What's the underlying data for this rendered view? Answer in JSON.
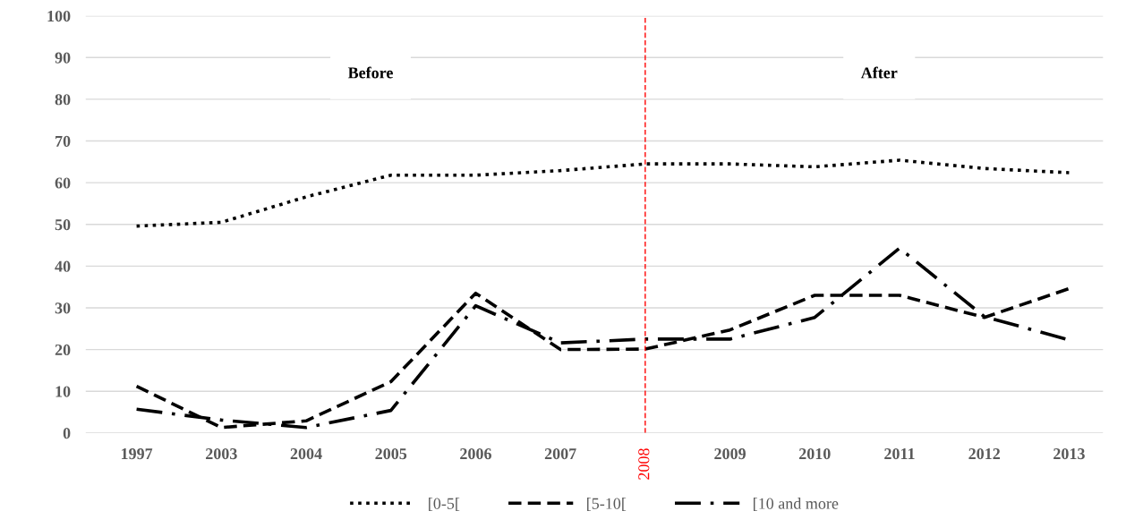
{
  "chart_data": {
    "type": "line",
    "categories": [
      "1997",
      "2003",
      "2004",
      "2005",
      "2006",
      "2007",
      "2008",
      "2009",
      "2010",
      "2011",
      "2012",
      "2013"
    ],
    "series": [
      {
        "name": "[0-5[",
        "color": "#000000",
        "line_style": "dotted",
        "values": [
          49.6,
          50.5,
          56.6,
          61.8,
          61.8,
          62.9,
          64.5,
          64.5,
          63.8,
          65.4,
          63.4,
          62.4
        ]
      },
      {
        "name": "[5-10[",
        "color": "#000000",
        "line_style": "dashed",
        "values": [
          11.2,
          1.3,
          2.9,
          12.3,
          33.5,
          20,
          20.1,
          24.7,
          33,
          33,
          27.7,
          34.6
        ]
      },
      {
        "name": "[10 and more",
        "color": "#000000",
        "line_style": "dashdot",
        "values": [
          5.7,
          3.1,
          1.3,
          5.4,
          30.5,
          21.6,
          22.5,
          22.5,
          27.7,
          44.3,
          27.9,
          22.3
        ]
      }
    ],
    "ylim": [
      0,
      100
    ],
    "yticks": [
      0,
      10,
      20,
      30,
      40,
      50,
      60,
      70,
      80,
      90,
      100
    ],
    "grid": "y",
    "legend": "bottom",
    "marker": "none",
    "ref_lines": [
      {
        "axis": "x",
        "value": "2008",
        "color": "#ff0000",
        "line_style": "dashed"
      }
    ],
    "annotations": [
      "Before",
      "After"
    ]
  }
}
